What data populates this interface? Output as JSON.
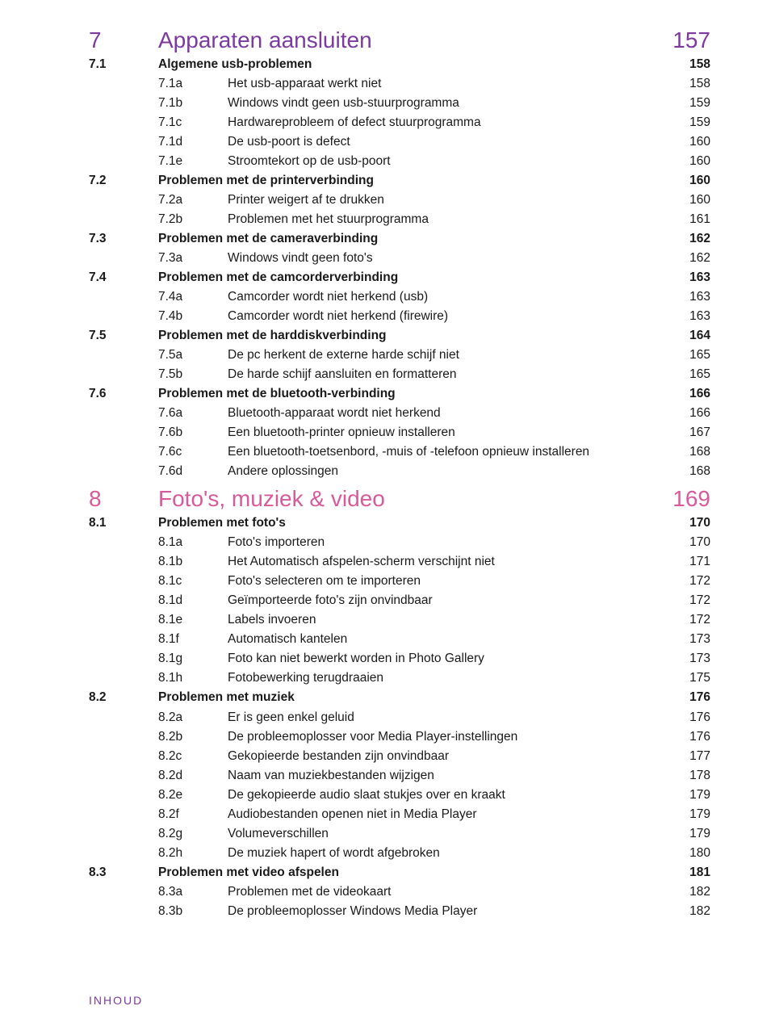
{
  "colors": {
    "chapter7": "#7c3aa0",
    "chapter8": "#d95a9b",
    "text": "#1a1a1a",
    "footer": "#7c3aa0",
    "background": "#ffffff"
  },
  "typography": {
    "chapter_fontsize": 28,
    "body_fontsize": 15.5,
    "footer_fontsize": 14,
    "footer_letterspacing": 2
  },
  "footer": "INHOUD",
  "chapters": [
    {
      "num": "7",
      "title": "Apparaten aansluiten",
      "page": "157",
      "colorKey": "chapter7",
      "sections": [
        {
          "num": "7.1",
          "title": "Algemene usb-problemen",
          "page": "158",
          "subs": [
            {
              "num": "7.1a",
              "title": "Het usb-apparaat werkt niet",
              "page": "158"
            },
            {
              "num": "7.1b",
              "title": "Windows vindt geen usb-stuurprogramma",
              "page": "159"
            },
            {
              "num": "7.1c",
              "title": "Hardwareprobleem of defect stuurprogramma",
              "page": "159"
            },
            {
              "num": "7.1d",
              "title": "De usb-poort is defect",
              "page": "160"
            },
            {
              "num": "7.1e",
              "title": "Stroomtekort op de usb-poort",
              "page": "160"
            }
          ]
        },
        {
          "num": "7.2",
          "title": "Problemen met de printerverbinding",
          "page": "160",
          "subs": [
            {
              "num": "7.2a",
              "title": "Printer weigert af te drukken",
              "page": "160"
            },
            {
              "num": "7.2b",
              "title": "Problemen met het stuurprogramma",
              "page": "161"
            }
          ]
        },
        {
          "num": "7.3",
          "title": "Problemen met de cameraverbinding",
          "page": "162",
          "subs": [
            {
              "num": "7.3a",
              "title": "Windows vindt geen foto's",
              "page": "162"
            }
          ]
        },
        {
          "num": "7.4",
          "title": "Problemen met de camcorderverbinding",
          "page": "163",
          "subs": [
            {
              "num": "7.4a",
              "title": "Camcorder wordt niet herkend (usb)",
              "page": "163"
            },
            {
              "num": "7.4b",
              "title": "Camcorder wordt niet herkend (firewire)",
              "page": "163"
            }
          ]
        },
        {
          "num": "7.5",
          "title": "Problemen met de harddiskverbinding",
          "page": "164",
          "subs": [
            {
              "num": "7.5a",
              "title": "De pc herkent de externe harde schijf niet",
              "page": "165"
            },
            {
              "num": "7.5b",
              "title": "De harde schijf aansluiten en formatteren",
              "page": "165"
            }
          ]
        },
        {
          "num": "7.6",
          "title": "Problemen met de bluetooth-verbinding",
          "page": "166",
          "subs": [
            {
              "num": "7.6a",
              "title": "Bluetooth-apparaat wordt niet herkend",
              "page": "166"
            },
            {
              "num": "7.6b",
              "title": "Een bluetooth-printer opnieuw installeren",
              "page": "167"
            },
            {
              "num": "7.6c",
              "title": "Een bluetooth-toetsenbord, -muis of -telefoon opnieuw installeren",
              "page": "168"
            },
            {
              "num": "7.6d",
              "title": "Andere oplossingen",
              "page": "168"
            }
          ]
        }
      ]
    },
    {
      "num": "8",
      "title": "Foto's, muziek & video",
      "page": "169",
      "colorKey": "chapter8",
      "sections": [
        {
          "num": "8.1",
          "title": "Problemen met foto's",
          "page": "170",
          "subs": [
            {
              "num": "8.1a",
              "title": "Foto's importeren",
              "page": "170"
            },
            {
              "num": "8.1b",
              "title": "Het Automatisch afspelen-scherm verschijnt niet",
              "page": "171"
            },
            {
              "num": "8.1c",
              "title": "Foto's selecteren om te importeren",
              "page": "172"
            },
            {
              "num": "8.1d",
              "title": "Geïmporteerde foto's zijn onvindbaar",
              "page": "172"
            },
            {
              "num": "8.1e",
              "title": "Labels invoeren",
              "page": "172"
            },
            {
              "num": "8.1f",
              "title": "Automatisch kantelen",
              "page": "173"
            },
            {
              "num": "8.1g",
              "title": "Foto kan niet bewerkt worden in Photo Gallery",
              "page": "173"
            },
            {
              "num": "8.1h",
              "title": "Fotobewerking terugdraaien",
              "page": "175"
            }
          ]
        },
        {
          "num": "8.2",
          "title": "Problemen met muziek",
          "page": "176",
          "subs": [
            {
              "num": "8.2a",
              "title": "Er is geen enkel geluid",
              "page": "176"
            },
            {
              "num": "8.2b",
              "title": "De probleemoplosser voor Media Player-instellingen",
              "page": "176"
            },
            {
              "num": "8.2c",
              "title": "Gekopieerde bestanden zijn onvindbaar",
              "page": "177"
            },
            {
              "num": "8.2d",
              "title": "Naam van muziekbestanden wijzigen",
              "page": "178"
            },
            {
              "num": "8.2e",
              "title": "De gekopieerde audio slaat stukjes over en kraakt",
              "page": "179"
            },
            {
              "num": "8.2f",
              "title": "Audiobestanden openen niet in Media Player",
              "page": "179"
            },
            {
              "num": "8.2g",
              "title": "Volumeverschillen",
              "page": "179"
            },
            {
              "num": "8.2h",
              "title": "De muziek hapert of wordt afgebroken",
              "page": "180"
            }
          ]
        },
        {
          "num": "8.3",
          "title": "Problemen met video afspelen",
          "page": "181",
          "subs": [
            {
              "num": "8.3a",
              "title": "Problemen met de videokaart",
              "page": "182"
            },
            {
              "num": "8.3b",
              "title": "De probleemoplosser Windows Media Player",
              "page": "182"
            }
          ]
        }
      ]
    }
  ]
}
